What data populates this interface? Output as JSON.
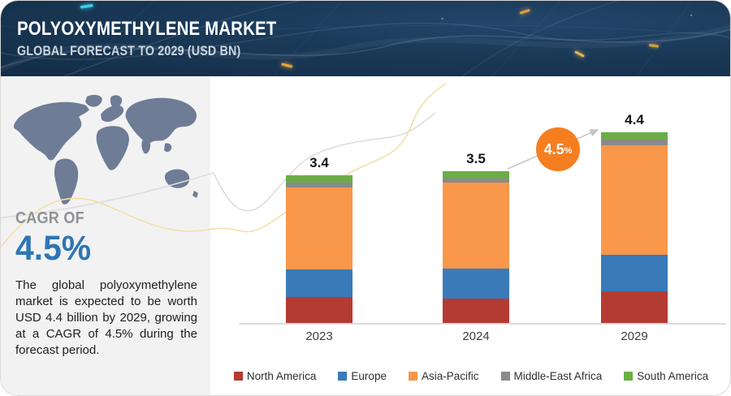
{
  "header": {
    "title": "POLYOXYMETHYLENE MARKET",
    "subtitle": "GLOBAL FORECAST TO 2029 (USD BN)"
  },
  "sidebar": {
    "cagr_label": "CAGR OF",
    "cagr_value": "4.5%",
    "description": "The global polyoxymethylene market is expected to be worth USD 4.4 billion by 2029, growing at a CAGR of 4.5% during the forecast period."
  },
  "chart_data": {
    "type": "bar",
    "stacked": true,
    "title": "",
    "xlabel": "",
    "ylabel": "USD BN",
    "grid": false,
    "legend_position": "bottom",
    "categories": [
      "2023",
      "2024",
      "2029"
    ],
    "totals": [
      "3.4",
      "3.5",
      "4.4"
    ],
    "series": [
      {
        "name": "North America",
        "color": "#b43b33",
        "values": [
          0.59,
          0.56,
          0.72
        ]
      },
      {
        "name": "Europe",
        "color": "#3a7ab8",
        "values": [
          0.65,
          0.69,
          0.85
        ]
      },
      {
        "name": "Asia-Pacific",
        "color": "#f9974a",
        "values": [
          1.89,
          1.98,
          2.53
        ]
      },
      {
        "name": "Middle-East Africa",
        "color": "#8a8a8a",
        "values": [
          0.1,
          0.1,
          0.12
        ]
      },
      {
        "name": "South America",
        "color": "#6cad47",
        "values": [
          0.17,
          0.17,
          0.18
        ]
      }
    ],
    "annotation": {
      "value": "4.5",
      "suffix": "%",
      "color": "#f57e20",
      "meaning": "CAGR growth badge"
    }
  },
  "colors": {
    "header_bg": "#16304a",
    "panel_bg": "#f2f2f3",
    "map_fill": "#6e7c96",
    "cagr_blue": "#2e75b5",
    "axis": "#dcdcdc",
    "badge_orange": "#f57e20"
  }
}
